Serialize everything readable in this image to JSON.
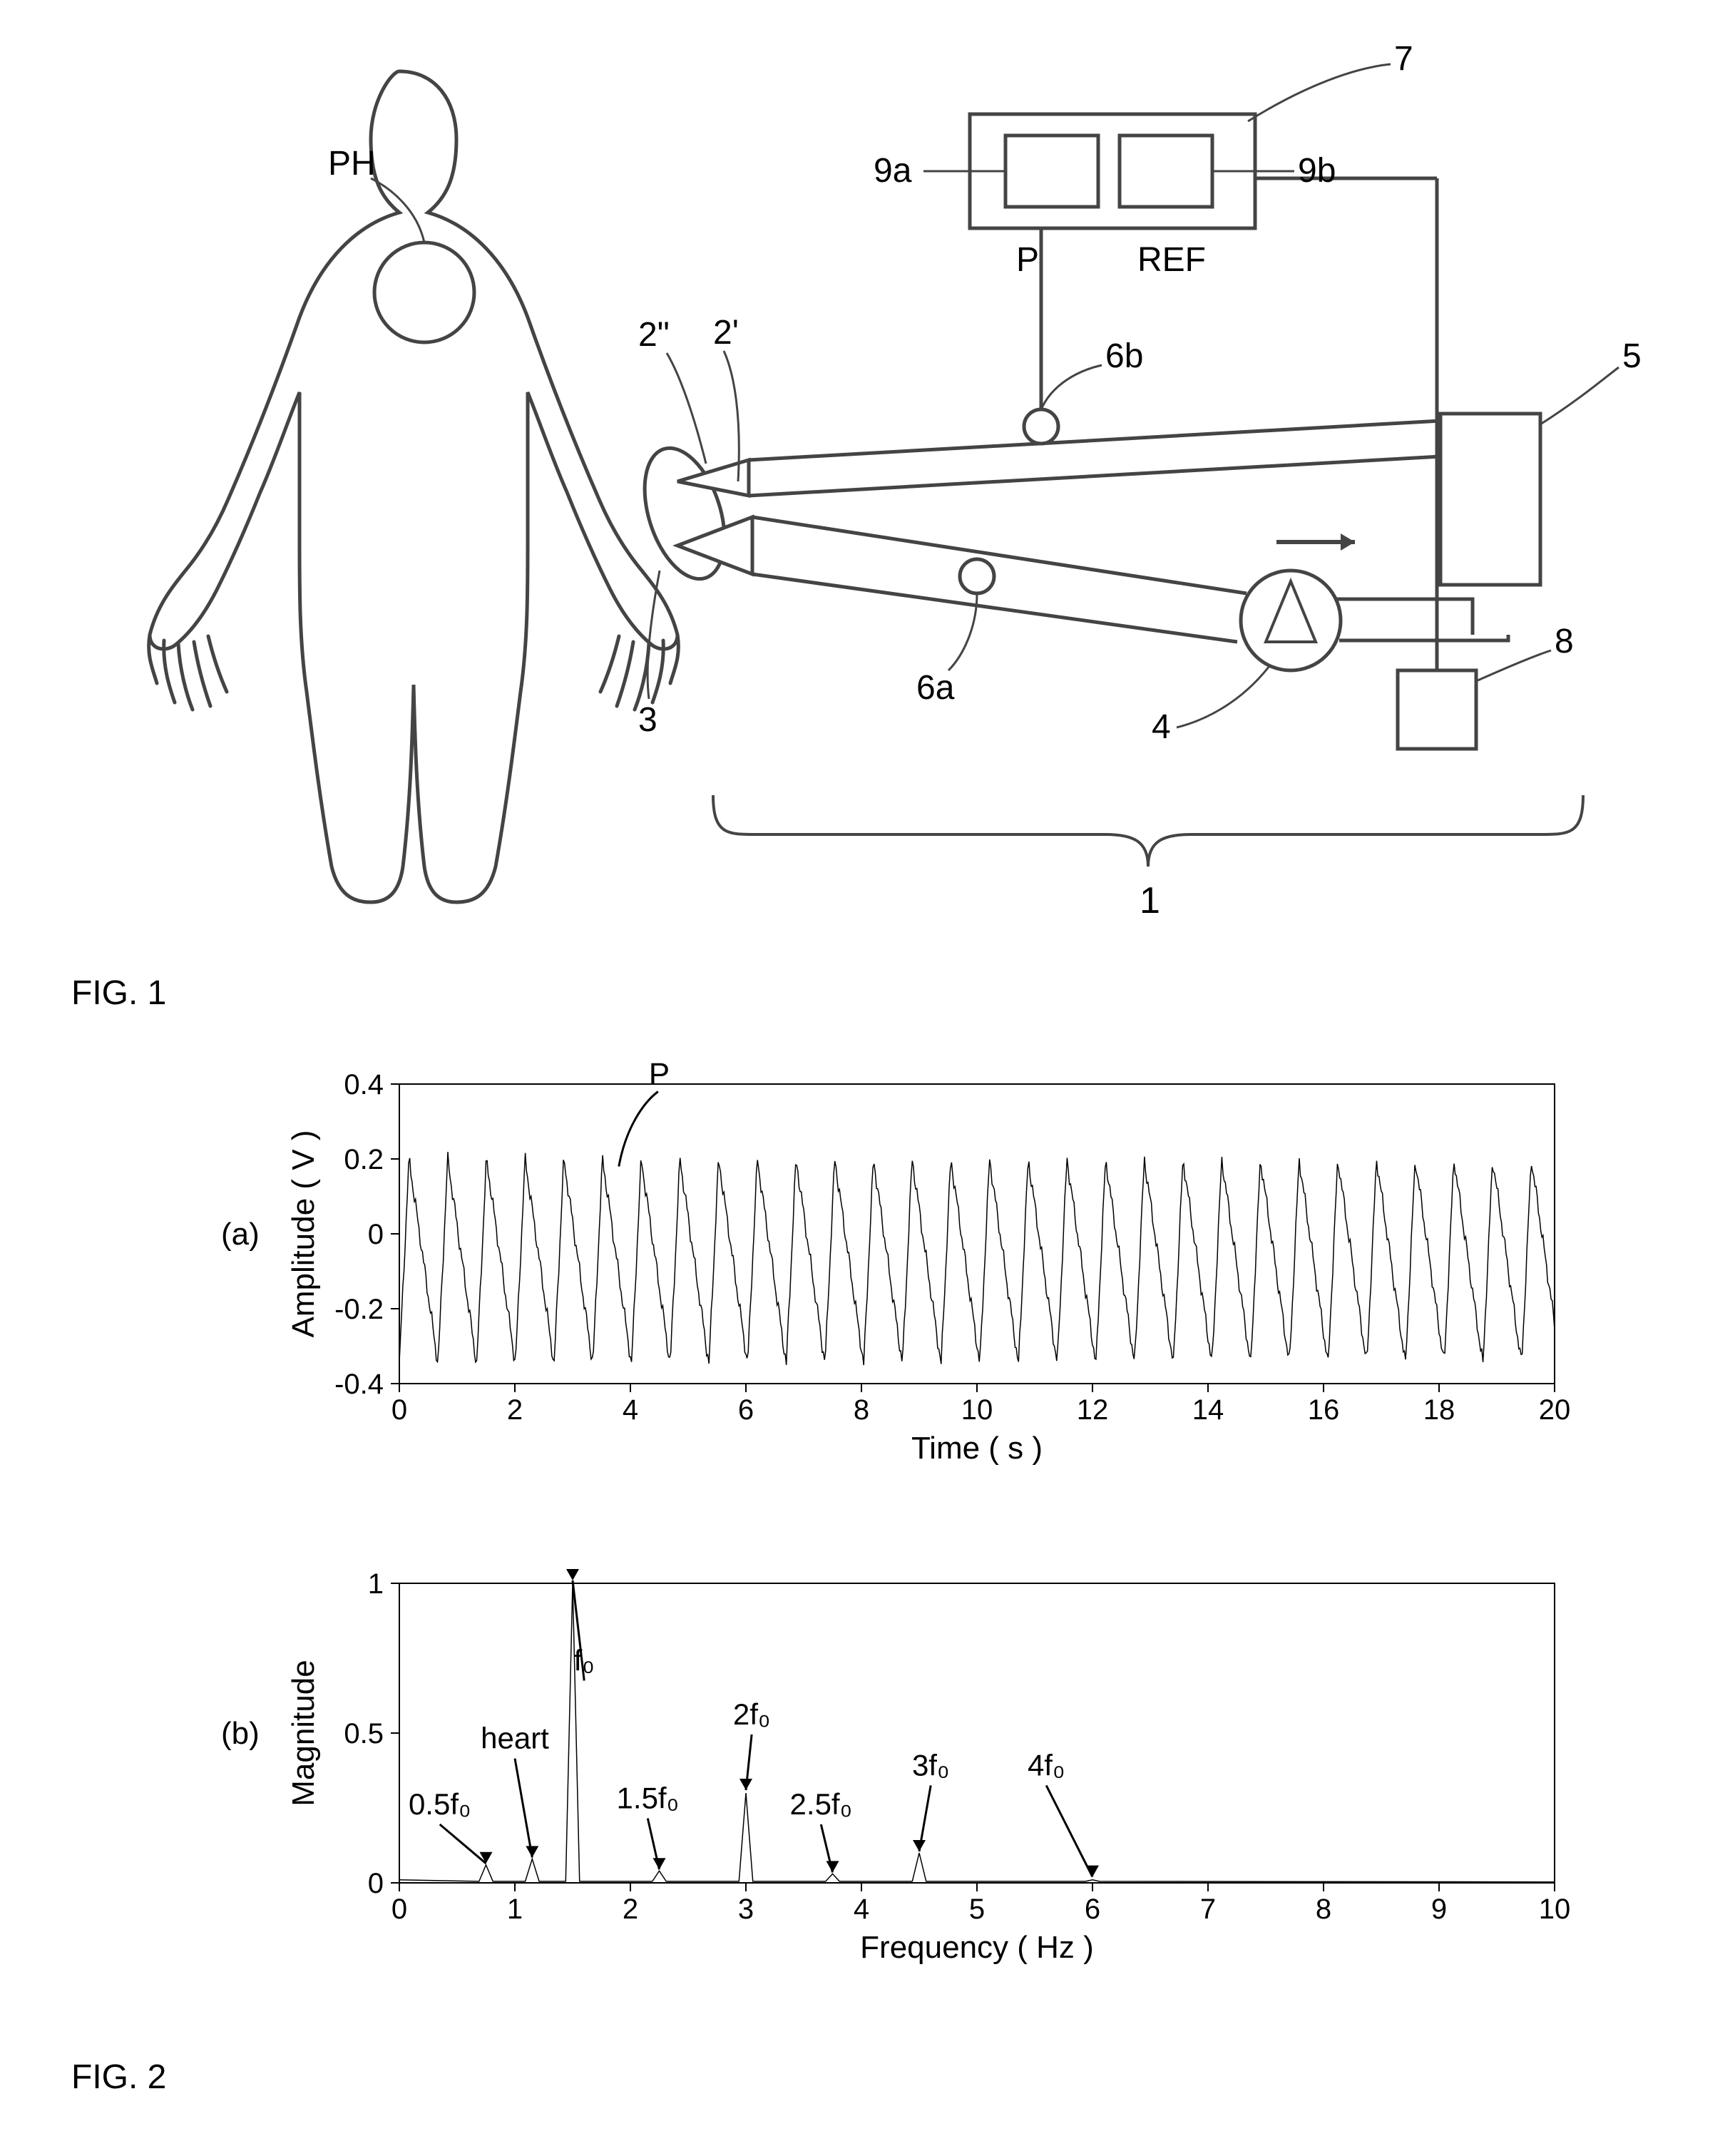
{
  "fig1": {
    "labels": {
      "PH": "PH",
      "P": "P",
      "REF": "REF",
      "n1": "1",
      "n2p": "2'",
      "n2pp": "2\"",
      "n3": "3",
      "n4": "4",
      "n5": "5",
      "n6a": "6a",
      "n6b": "6b",
      "n7": "7",
      "n8": "8",
      "n9a": "9a",
      "n9b": "9b"
    },
    "colors": {
      "stroke": "#444444",
      "smallbox": "#ffffff",
      "lineWidth": 5
    }
  },
  "fig2": {
    "chartA": {
      "type": "line",
      "xlim": [
        0,
        20
      ],
      "ylim": [
        -0.4,
        0.4
      ],
      "xticks": [
        0,
        2,
        4,
        6,
        8,
        10,
        12,
        14,
        16,
        18,
        20
      ],
      "yticks": [
        -0.4,
        -0.2,
        0,
        0.2,
        0.4
      ],
      "xlabel": "Time ( s )",
      "ylabel": "Amplitude ( V )",
      "annotation": "P",
      "pointer_x": 3.8,
      "lineColor": "#000000",
      "lineWidth": 1.5,
      "gridColor": "#000000",
      "background": "#ffffff",
      "subplotLabel": "(a)",
      "period": 0.67,
      "amp_high": 0.2,
      "amp_low": -0.35,
      "font_size_axis": 40,
      "font_size_label": 44
    },
    "chartB": {
      "type": "line-spectrum",
      "xlim": [
        0,
        10
      ],
      "ylim": [
        0,
        1
      ],
      "xticks": [
        0,
        1,
        2,
        3,
        4,
        5,
        6,
        7,
        8,
        9,
        10
      ],
      "yticks": [
        0,
        0.5,
        1
      ],
      "xlabel": "Frequency ( Hz )",
      "ylabel": "Magnitude",
      "lineColor": "#000000",
      "lineWidth": 1.5,
      "gridColor": "#000000",
      "background": "#ffffff",
      "subplotLabel": "(b)",
      "font_size_axis": 40,
      "font_size_label": 44,
      "peaks": [
        {
          "label": "0.5f₀",
          "x": 0.75,
          "mag": 0.06,
          "lx": 0.35,
          "ly": 0.2
        },
        {
          "label": "heart",
          "x": 1.15,
          "mag": 0.08,
          "lx": 1.0,
          "ly": 0.42
        },
        {
          "label": "f₀",
          "x": 1.5,
          "mag": 1.0,
          "lx": 1.6,
          "ly": 0.68
        },
        {
          "label": "1.5f₀",
          "x": 2.25,
          "mag": 0.04,
          "lx": 2.15,
          "ly": 0.22
        },
        {
          "label": "2f₀",
          "x": 3.0,
          "mag": 0.3,
          "lx": 3.05,
          "ly": 0.5
        },
        {
          "label": "2.5f₀",
          "x": 3.75,
          "mag": 0.03,
          "lx": 3.65,
          "ly": 0.2
        },
        {
          "label": "3f₀",
          "x": 4.5,
          "mag": 0.1,
          "lx": 4.6,
          "ly": 0.33
        },
        {
          "label": "4f₀",
          "x": 6.0,
          "mag": 0.01,
          "lx": 5.6,
          "ly": 0.33
        }
      ]
    }
  },
  "captions": {
    "fig1": "FIG. 1",
    "fig2": "FIG. 2"
  }
}
